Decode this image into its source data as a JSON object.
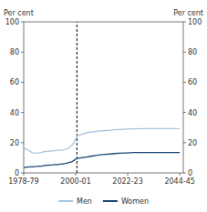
{
  "chart_data": {
    "type": "line",
    "ylabel": "Per cent",
    "y2label": "Per cent",
    "xlim": [
      1978.5,
      2046
    ],
    "ylim": [
      0,
      100
    ],
    "y2lim": [
      0,
      100
    ],
    "yticks": [
      0,
      20,
      40,
      60,
      80,
      100
    ],
    "y2ticks": [
      0,
      20,
      40,
      60,
      80,
      100
    ],
    "xticks": [
      {
        "value": 1978.5,
        "label": "1978-79"
      },
      {
        "value": 2000.5,
        "label": "2000-01"
      },
      {
        "value": 2022.5,
        "label": "2022-23"
      },
      {
        "value": 2044.5,
        "label": "2044-45"
      }
    ],
    "vline_x": 2001.0,
    "x": [
      1978.5,
      1979,
      1980,
      1981,
      1982,
      1983,
      1984,
      1985,
      1986,
      1987,
      1988,
      1989,
      1990,
      1991,
      1992,
      1993,
      1994,
      1995,
      1996,
      1997,
      1998,
      1999,
      2000,
      2001,
      2001,
      2003,
      2005,
      2007,
      2009,
      2011,
      2013,
      2015,
      2017,
      2019,
      2022,
      2025,
      2030,
      2035,
      2040,
      2044.5
    ],
    "series": [
      {
        "name": "Men",
        "color": "#a8c4de",
        "values": [
          16.5,
          16.0,
          15.5,
          14.5,
          13.5,
          13.2,
          13.0,
          13.2,
          13.5,
          14.0,
          14.2,
          14.3,
          14.5,
          14.5,
          14.8,
          15.0,
          15.0,
          15.2,
          15.5,
          16.0,
          17.0,
          18.5,
          20.5,
          24.5,
          24.5,
          25.5,
          26.5,
          27.0,
          27.5,
          27.8,
          28.0,
          28.2,
          28.5,
          28.7,
          29.0,
          29.2,
          29.3,
          29.3,
          29.3,
          29.3
        ]
      },
      {
        "name": "Women",
        "color": "#1a4472",
        "values": [
          3.5,
          3.5,
          3.8,
          4.0,
          4.0,
          4.2,
          4.3,
          4.5,
          4.5,
          4.8,
          5.0,
          5.0,
          5.2,
          5.3,
          5.5,
          5.5,
          5.8,
          6.0,
          6.2,
          6.5,
          7.0,
          7.5,
          8.5,
          9.5,
          9.5,
          10.0,
          10.5,
          11.0,
          11.5,
          12.0,
          12.3,
          12.5,
          12.8,
          13.0,
          13.2,
          13.5,
          13.5,
          13.5,
          13.5,
          13.5
        ]
      }
    ],
    "legend": "bottom",
    "grid": false
  }
}
